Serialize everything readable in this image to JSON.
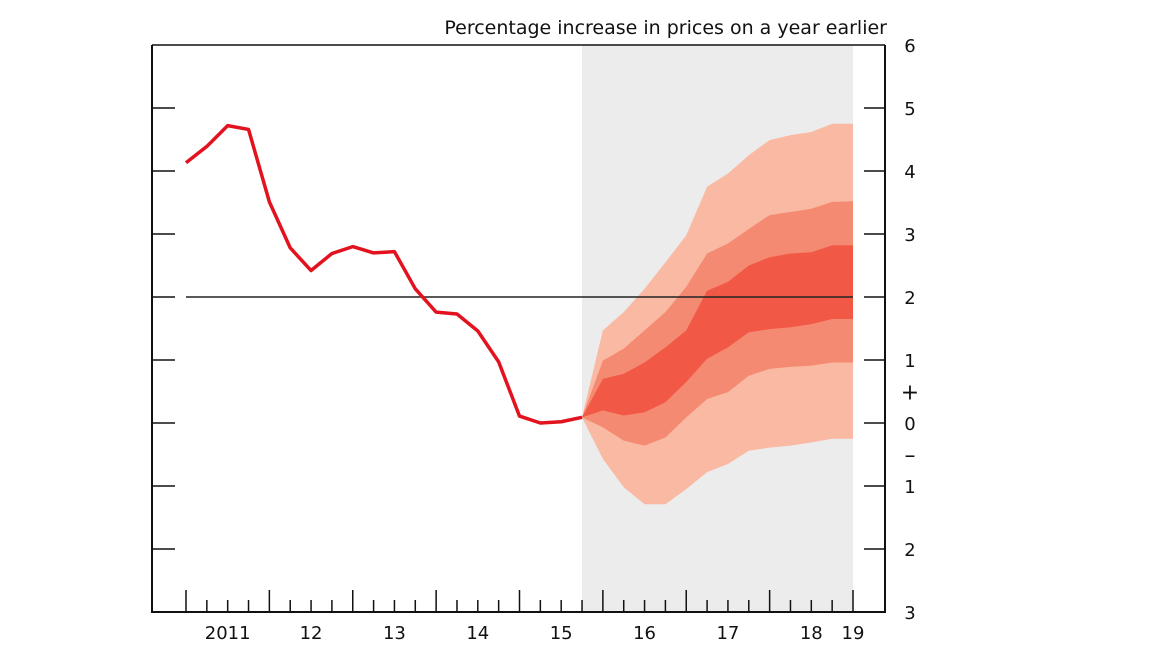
{
  "chart_data": {
    "type": "area",
    "title": "Percentage increase in prices on a year earlier",
    "xlabel": "",
    "ylabel": "",
    "ylim": [
      -3,
      6
    ],
    "y_ticks": [
      6,
      5,
      4,
      3,
      2,
      1,
      0,
      -1,
      -2,
      -3
    ],
    "y_tick_labels": [
      "6",
      "5",
      "4",
      "3",
      "2",
      "1",
      "0",
      "1",
      "2",
      "3"
    ],
    "sign_markers": {
      "plus": "+",
      "minus": "–"
    },
    "x_tick_labels": [
      "2011",
      "12",
      "13",
      "14",
      "15",
      "16",
      "17",
      "18",
      "19"
    ],
    "xlim": [
      "2011 Q1",
      "2019 Q1"
    ],
    "grid": false,
    "legend": "none",
    "target_line": 2,
    "projection_shading_start": "2015 Q4",
    "colors": {
      "history": "#e3121f",
      "band_outer": "#f9b9a2",
      "band_middle": "#f58a72",
      "band_inner": "#f15845",
      "projection_bg": "#ececec",
      "target": "#222222"
    },
    "history": {
      "x": [
        "2011 Q1",
        "2011 Q2",
        "2011 Q3",
        "2011 Q4",
        "2012 Q1",
        "2012 Q2",
        "2012 Q3",
        "2012 Q4",
        "2013 Q1",
        "2013 Q2",
        "2013 Q3",
        "2013 Q4",
        "2014 Q1",
        "2014 Q2",
        "2014 Q3",
        "2014 Q4",
        "2015 Q1",
        "2015 Q2",
        "2015 Q3",
        "2015 Q4"
      ],
      "values": [
        4.13,
        4.39,
        4.72,
        4.66,
        3.51,
        2.78,
        2.42,
        2.69,
        2.8,
        2.7,
        2.72,
        2.13,
        1.76,
        1.73,
        1.46,
        0.97,
        0.11,
        0.0,
        0.02,
        0.09
      ]
    },
    "fan": {
      "x": [
        "2015 Q4",
        "2016 Q1",
        "2016 Q2",
        "2016 Q3",
        "2016 Q4",
        "2017 Q1",
        "2017 Q2",
        "2017 Q3",
        "2017 Q4",
        "2018 Q1",
        "2018 Q2",
        "2018 Q3",
        "2018 Q4",
        "2019 Q1"
      ],
      "outer_upper": [
        0.09,
        1.47,
        1.76,
        2.13,
        2.55,
        2.98,
        3.75,
        3.96,
        4.25,
        4.49,
        4.57,
        4.62,
        4.75,
        4.75
      ],
      "middle_upper": [
        0.09,
        0.99,
        1.18,
        1.47,
        1.76,
        2.16,
        2.69,
        2.85,
        3.08,
        3.3,
        3.35,
        3.4,
        3.51,
        3.52
      ],
      "inner_upper": [
        0.09,
        0.7,
        0.78,
        0.96,
        1.2,
        1.47,
        2.1,
        2.24,
        2.5,
        2.63,
        2.69,
        2.71,
        2.82,
        2.82
      ],
      "inner_lower": [
        0.09,
        0.2,
        0.12,
        0.17,
        0.33,
        0.65,
        1.02,
        1.2,
        1.44,
        1.49,
        1.52,
        1.57,
        1.65,
        1.65
      ],
      "middle_lower": [
        0.09,
        -0.07,
        -0.28,
        -0.36,
        -0.23,
        0.09,
        0.38,
        0.49,
        0.75,
        0.86,
        0.89,
        0.91,
        0.96,
        0.96
      ],
      "outer_lower": [
        0.09,
        -0.57,
        -1.02,
        -1.29,
        -1.29,
        -1.05,
        -0.78,
        -0.65,
        -0.44,
        -0.39,
        -0.36,
        -0.31,
        -0.25,
        -0.25
      ]
    }
  }
}
